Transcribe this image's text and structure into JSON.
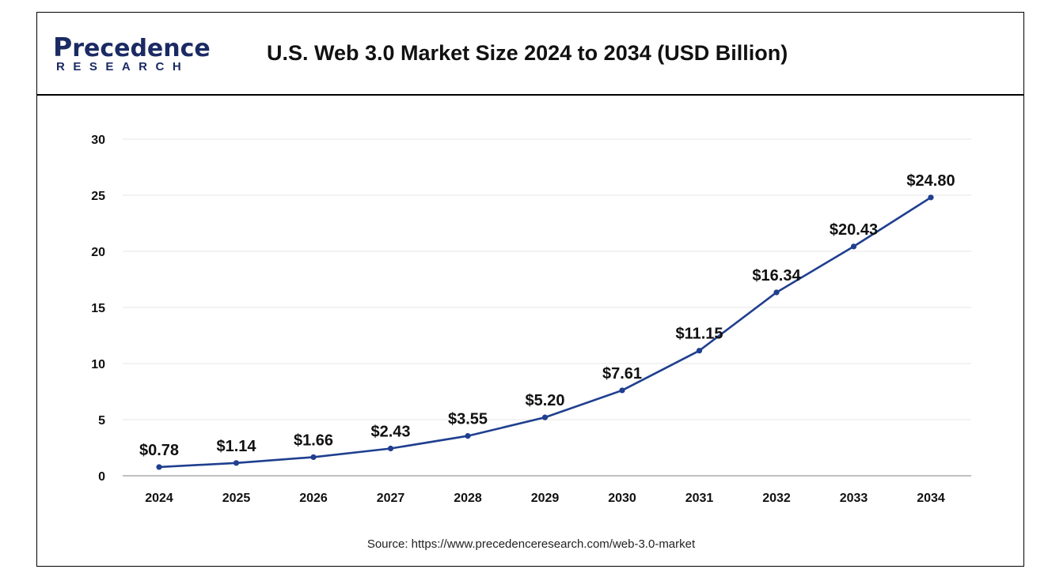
{
  "brand": {
    "logo_top": "recedence",
    "logo_p": "P",
    "logo_bottom": "RESEARCH"
  },
  "chart_data": {
    "type": "line",
    "title": "U.S. Web 3.0 Market Size 2024 to 2034 (USD Billion)",
    "categories": [
      "2024",
      "2025",
      "2026",
      "2027",
      "2028",
      "2029",
      "2030",
      "2031",
      "2032",
      "2033",
      "2034"
    ],
    "series": [
      {
        "values": [
          0.78,
          1.14,
          1.66,
          2.43,
          3.55,
          5.2,
          7.61,
          11.15,
          16.34,
          20.43,
          24.8
        ],
        "labels": [
          "$0.78",
          "$1.14",
          "$1.66",
          "$2.43",
          "$3.55",
          "$5.20",
          "$7.61",
          "$11.15",
          "$16.34",
          "$20.43",
          "$24.80"
        ],
        "color": "#1f3f8f"
      }
    ],
    "ylim": [
      0,
      30
    ],
    "yticks": [
      0,
      5,
      10,
      15,
      20,
      25,
      30
    ],
    "grid": true,
    "legend": "none"
  },
  "source": "Source: https://www.precedenceresearch.com/web-3.0-market"
}
